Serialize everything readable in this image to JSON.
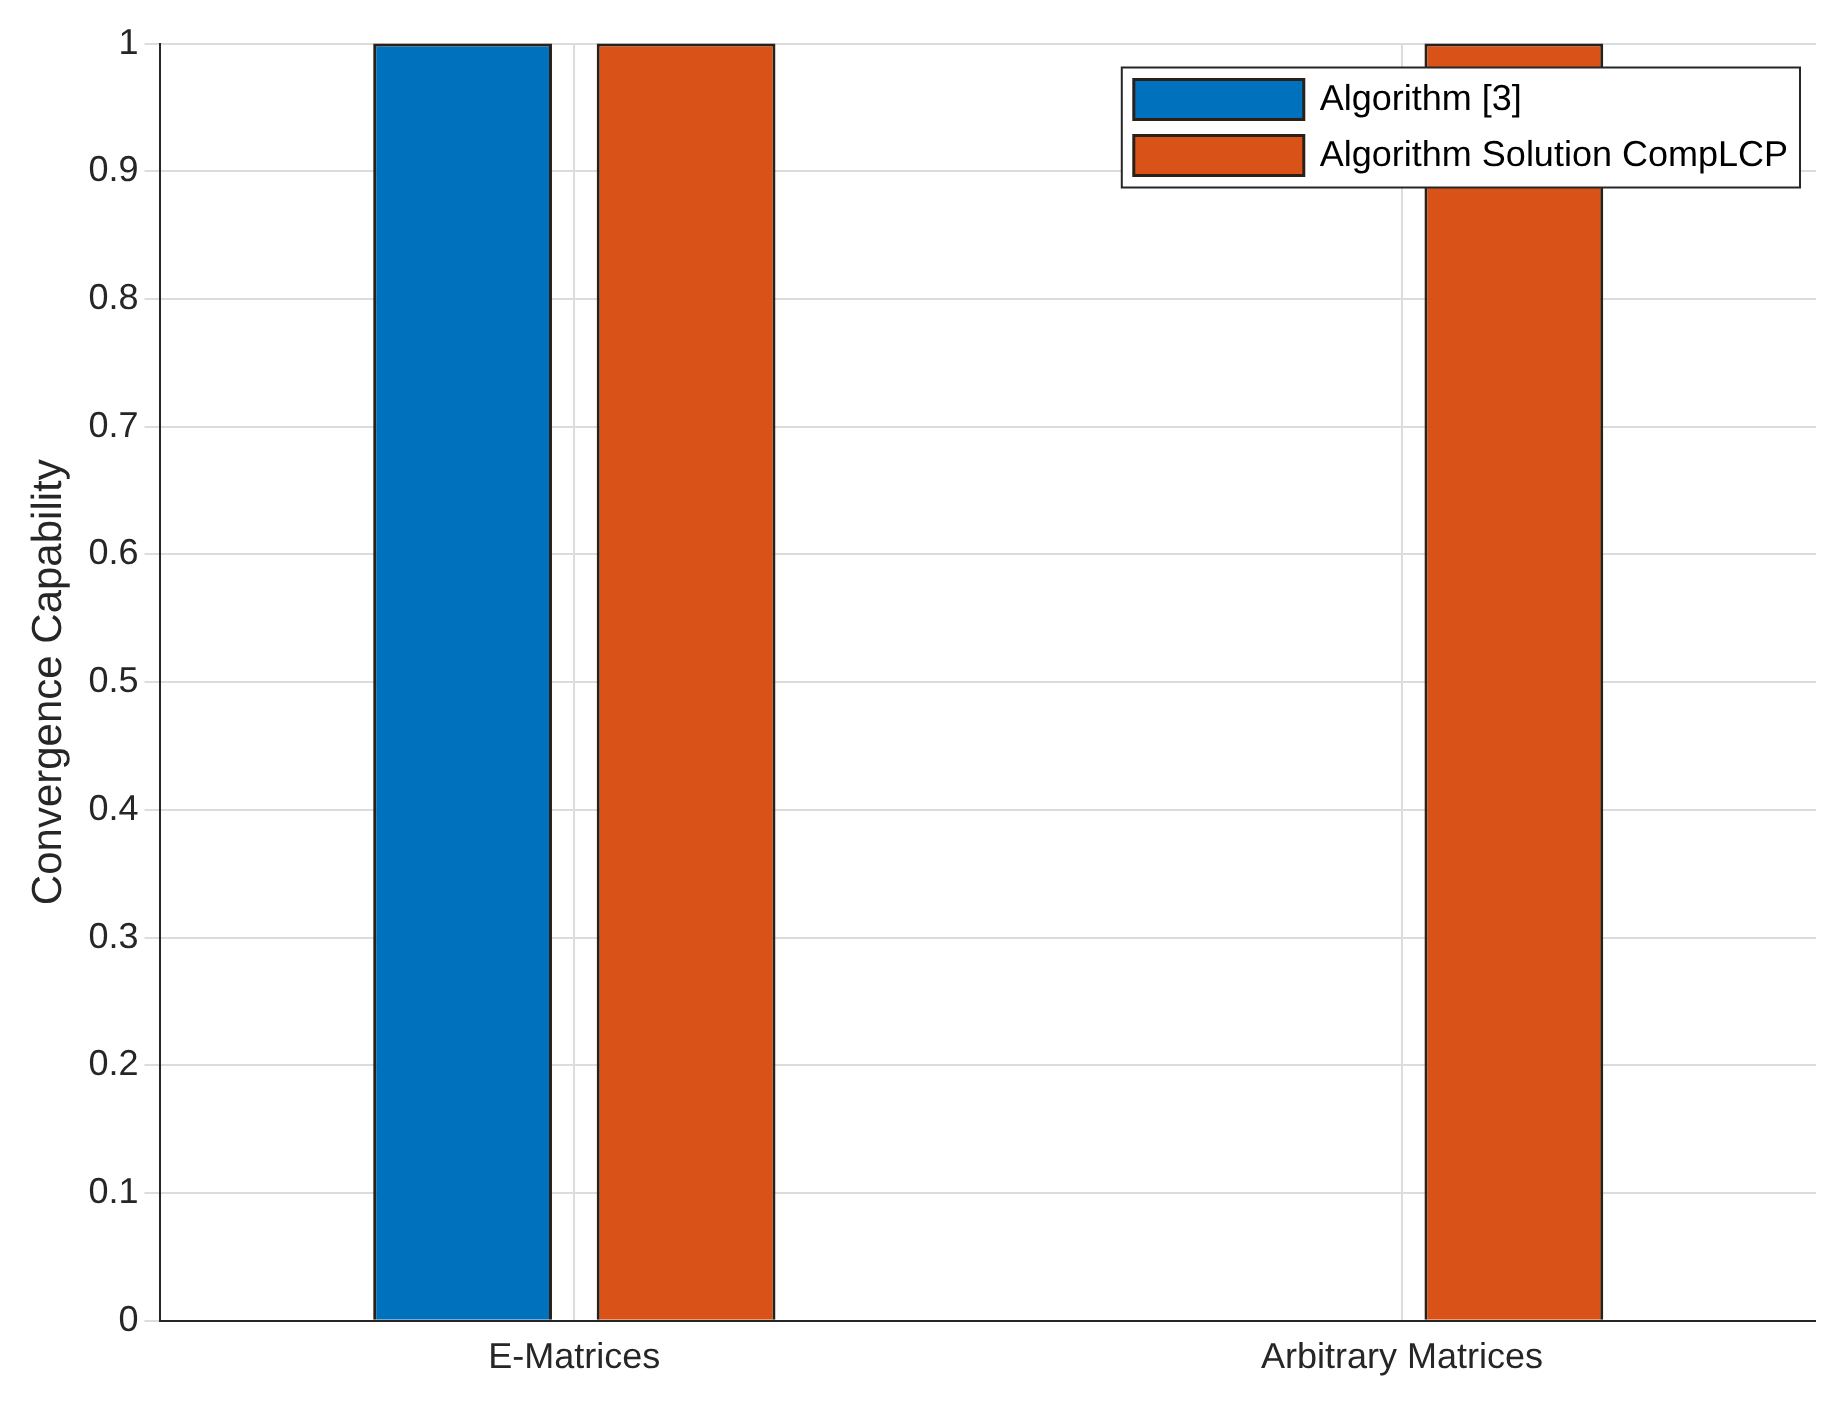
{
  "chart_data": {
    "type": "bar",
    "ylabel": "Convergence Capability",
    "categories": [
      "E-Matrices",
      "Arbitrary Matrices"
    ],
    "series": [
      {
        "name": "Algorithm [3]",
        "color": "#0072bd",
        "values": [
          1,
          0
        ]
      },
      {
        "name": "Algorithm Solution CompLCP",
        "color": "#d95319",
        "values": [
          1,
          1
        ]
      }
    ],
    "ylim": [
      0,
      1
    ],
    "yticks": [
      0,
      0.1,
      0.2,
      0.3,
      0.4,
      0.5,
      0.6,
      0.7,
      0.8,
      0.9,
      1
    ],
    "grid": true,
    "legend": "top right"
  }
}
